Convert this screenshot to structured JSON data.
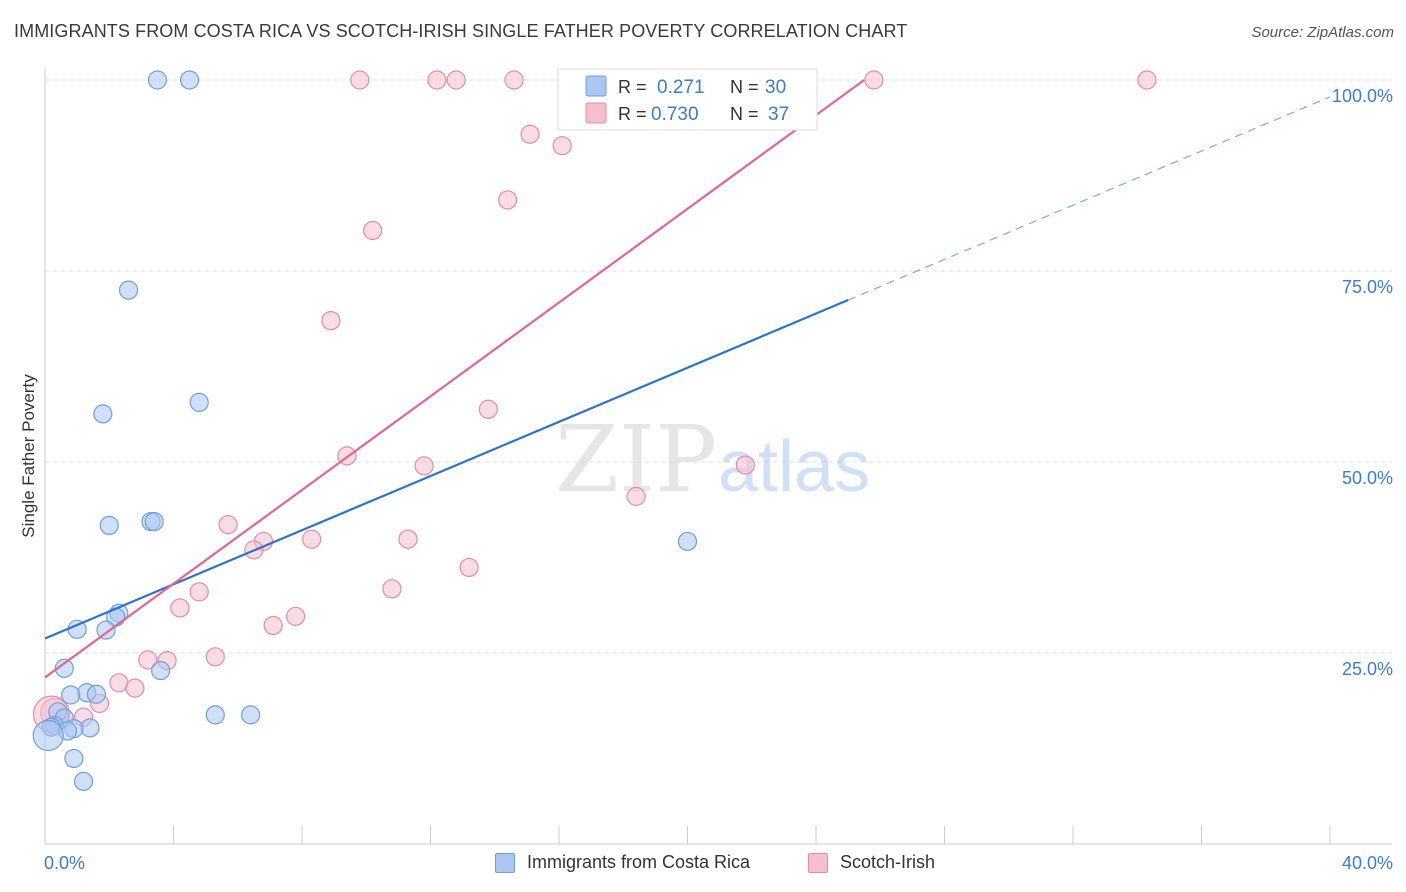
{
  "header": {
    "title": "IMMIGRANTS FROM COSTA RICA VS SCOTCH-IRISH SINGLE FATHER POVERTY CORRELATION CHART",
    "source": "Source: ZipAtlas.com"
  },
  "watermark": {
    "zip": "ZIP",
    "atlas": "atlas"
  },
  "colors": {
    "blue_fill": "#a9c7f2",
    "blue_stroke": "#6f9ee0",
    "blue_line": "#2f72cc",
    "pink_fill": "#f6bfd0",
    "pink_stroke": "#e88aa9",
    "pink_line": "#e06790",
    "axis_label": "#3d7cd0",
    "grid": "#dddddd"
  },
  "stats_legend": {
    "rows": [
      {
        "r_label": "R =",
        "r_value": "0.271",
        "n_label": "N =",
        "n_value": "30"
      },
      {
        "r_label": "R =",
        "r_value": "0.730",
        "n_label": "N =",
        "n_value": "37"
      }
    ]
  },
  "chart_data": {
    "type": "scatter",
    "title": "IMMIGRANTS FROM COSTA RICA VS SCOTCH-IRISH SINGLE FATHER POVERTY CORRELATION CHART",
    "xlabel": "",
    "ylabel": "Single Father Poverty",
    "xlim": [
      0,
      40
    ],
    "ylim": [
      0,
      100
    ],
    "x_tick_labels": [
      "0.0%",
      "40.0%"
    ],
    "y_ticks": [
      25,
      50,
      75,
      100
    ],
    "y_tick_labels": [
      "25.0%",
      "50.0%",
      "75.0%",
      "100.0%"
    ],
    "grid": true,
    "legend_position": "bottom",
    "series": [
      {
        "name": "Immigrants from Costa Rica",
        "color": "#a9c7f2",
        "r": 0.271,
        "n": 30,
        "trend": {
          "x0": 0,
          "y0": 26.9,
          "x1": 25,
          "y1": 71.2,
          "dashed_to_x": 40,
          "dashed_to_y": 97.8
        },
        "points": [
          [
            3.5,
            100
          ],
          [
            4.5,
            100
          ],
          [
            2.6,
            72.5
          ],
          [
            4.8,
            57.8
          ],
          [
            1.8,
            56.3
          ],
          [
            2.0,
            41.7
          ],
          [
            3.3,
            42.2
          ],
          [
            3.4,
            42.2
          ],
          [
            20.0,
            39.6
          ],
          [
            2.3,
            30.2
          ],
          [
            2.2,
            29.7
          ],
          [
            1.9,
            28.0
          ],
          [
            1.0,
            28.1
          ],
          [
            3.6,
            22.7
          ],
          [
            0.6,
            23.0
          ],
          [
            1.3,
            19.8
          ],
          [
            0.8,
            19.5
          ],
          [
            1.6,
            19.6
          ],
          [
            5.3,
            16.9
          ],
          [
            6.4,
            16.9
          ],
          [
            0.4,
            17.3
          ],
          [
            0.6,
            16.5
          ],
          [
            0.3,
            15.5
          ],
          [
            0.2,
            15.3
          ],
          [
            1.4,
            15.2
          ],
          [
            0.9,
            15.1
          ],
          [
            0.7,
            14.8
          ],
          [
            0.1,
            14.2
          ],
          [
            0.9,
            11.2
          ],
          [
            1.2,
            8.2
          ]
        ],
        "point_sizes": [
          18,
          18,
          18,
          18,
          18,
          18,
          18,
          18,
          18,
          18,
          18,
          18,
          18,
          18,
          18,
          18,
          18,
          18,
          18,
          18,
          18,
          18,
          18,
          18,
          18,
          18,
          18,
          30,
          18,
          18
        ]
      },
      {
        "name": "Scotch-Irish",
        "color": "#f6bfd0",
        "r": 0.73,
        "n": 37,
        "trend": {
          "x0": 0,
          "y0": 21.8,
          "x1": 25.5,
          "y1": 100
        },
        "points": [
          [
            9.8,
            100
          ],
          [
            12.2,
            100
          ],
          [
            12.8,
            100
          ],
          [
            14.6,
            100
          ],
          [
            17.1,
            100
          ],
          [
            25.8,
            100
          ],
          [
            34.3,
            100
          ],
          [
            15.1,
            92.9
          ],
          [
            16.1,
            91.4
          ],
          [
            14.4,
            84.3
          ],
          [
            10.2,
            80.3
          ],
          [
            8.9,
            68.5
          ],
          [
            13.8,
            56.9
          ],
          [
            9.4,
            50.8
          ],
          [
            11.8,
            49.5
          ],
          [
            21.8,
            49.6
          ],
          [
            18.4,
            45.5
          ],
          [
            5.7,
            41.8
          ],
          [
            6.8,
            39.6
          ],
          [
            6.5,
            38.5
          ],
          [
            8.3,
            39.9
          ],
          [
            11.3,
            39.9
          ],
          [
            13.2,
            36.2
          ],
          [
            10.8,
            33.4
          ],
          [
            4.8,
            33.0
          ],
          [
            4.2,
            30.9
          ],
          [
            7.8,
            29.8
          ],
          [
            7.1,
            28.6
          ],
          [
            5.3,
            24.5
          ],
          [
            3.2,
            24.1
          ],
          [
            3.8,
            24.0
          ],
          [
            2.3,
            21.1
          ],
          [
            2.8,
            20.4
          ],
          [
            1.7,
            18.4
          ],
          [
            1.2,
            16.6
          ],
          [
            0.3,
            17.2
          ],
          [
            0.2,
            17.0
          ]
        ],
        "point_sizes": [
          18,
          18,
          18,
          18,
          18,
          18,
          18,
          18,
          18,
          18,
          18,
          18,
          18,
          18,
          18,
          18,
          18,
          18,
          18,
          18,
          18,
          18,
          18,
          18,
          18,
          18,
          18,
          18,
          18,
          18,
          18,
          18,
          18,
          18,
          18,
          28,
          36
        ]
      }
    ]
  }
}
